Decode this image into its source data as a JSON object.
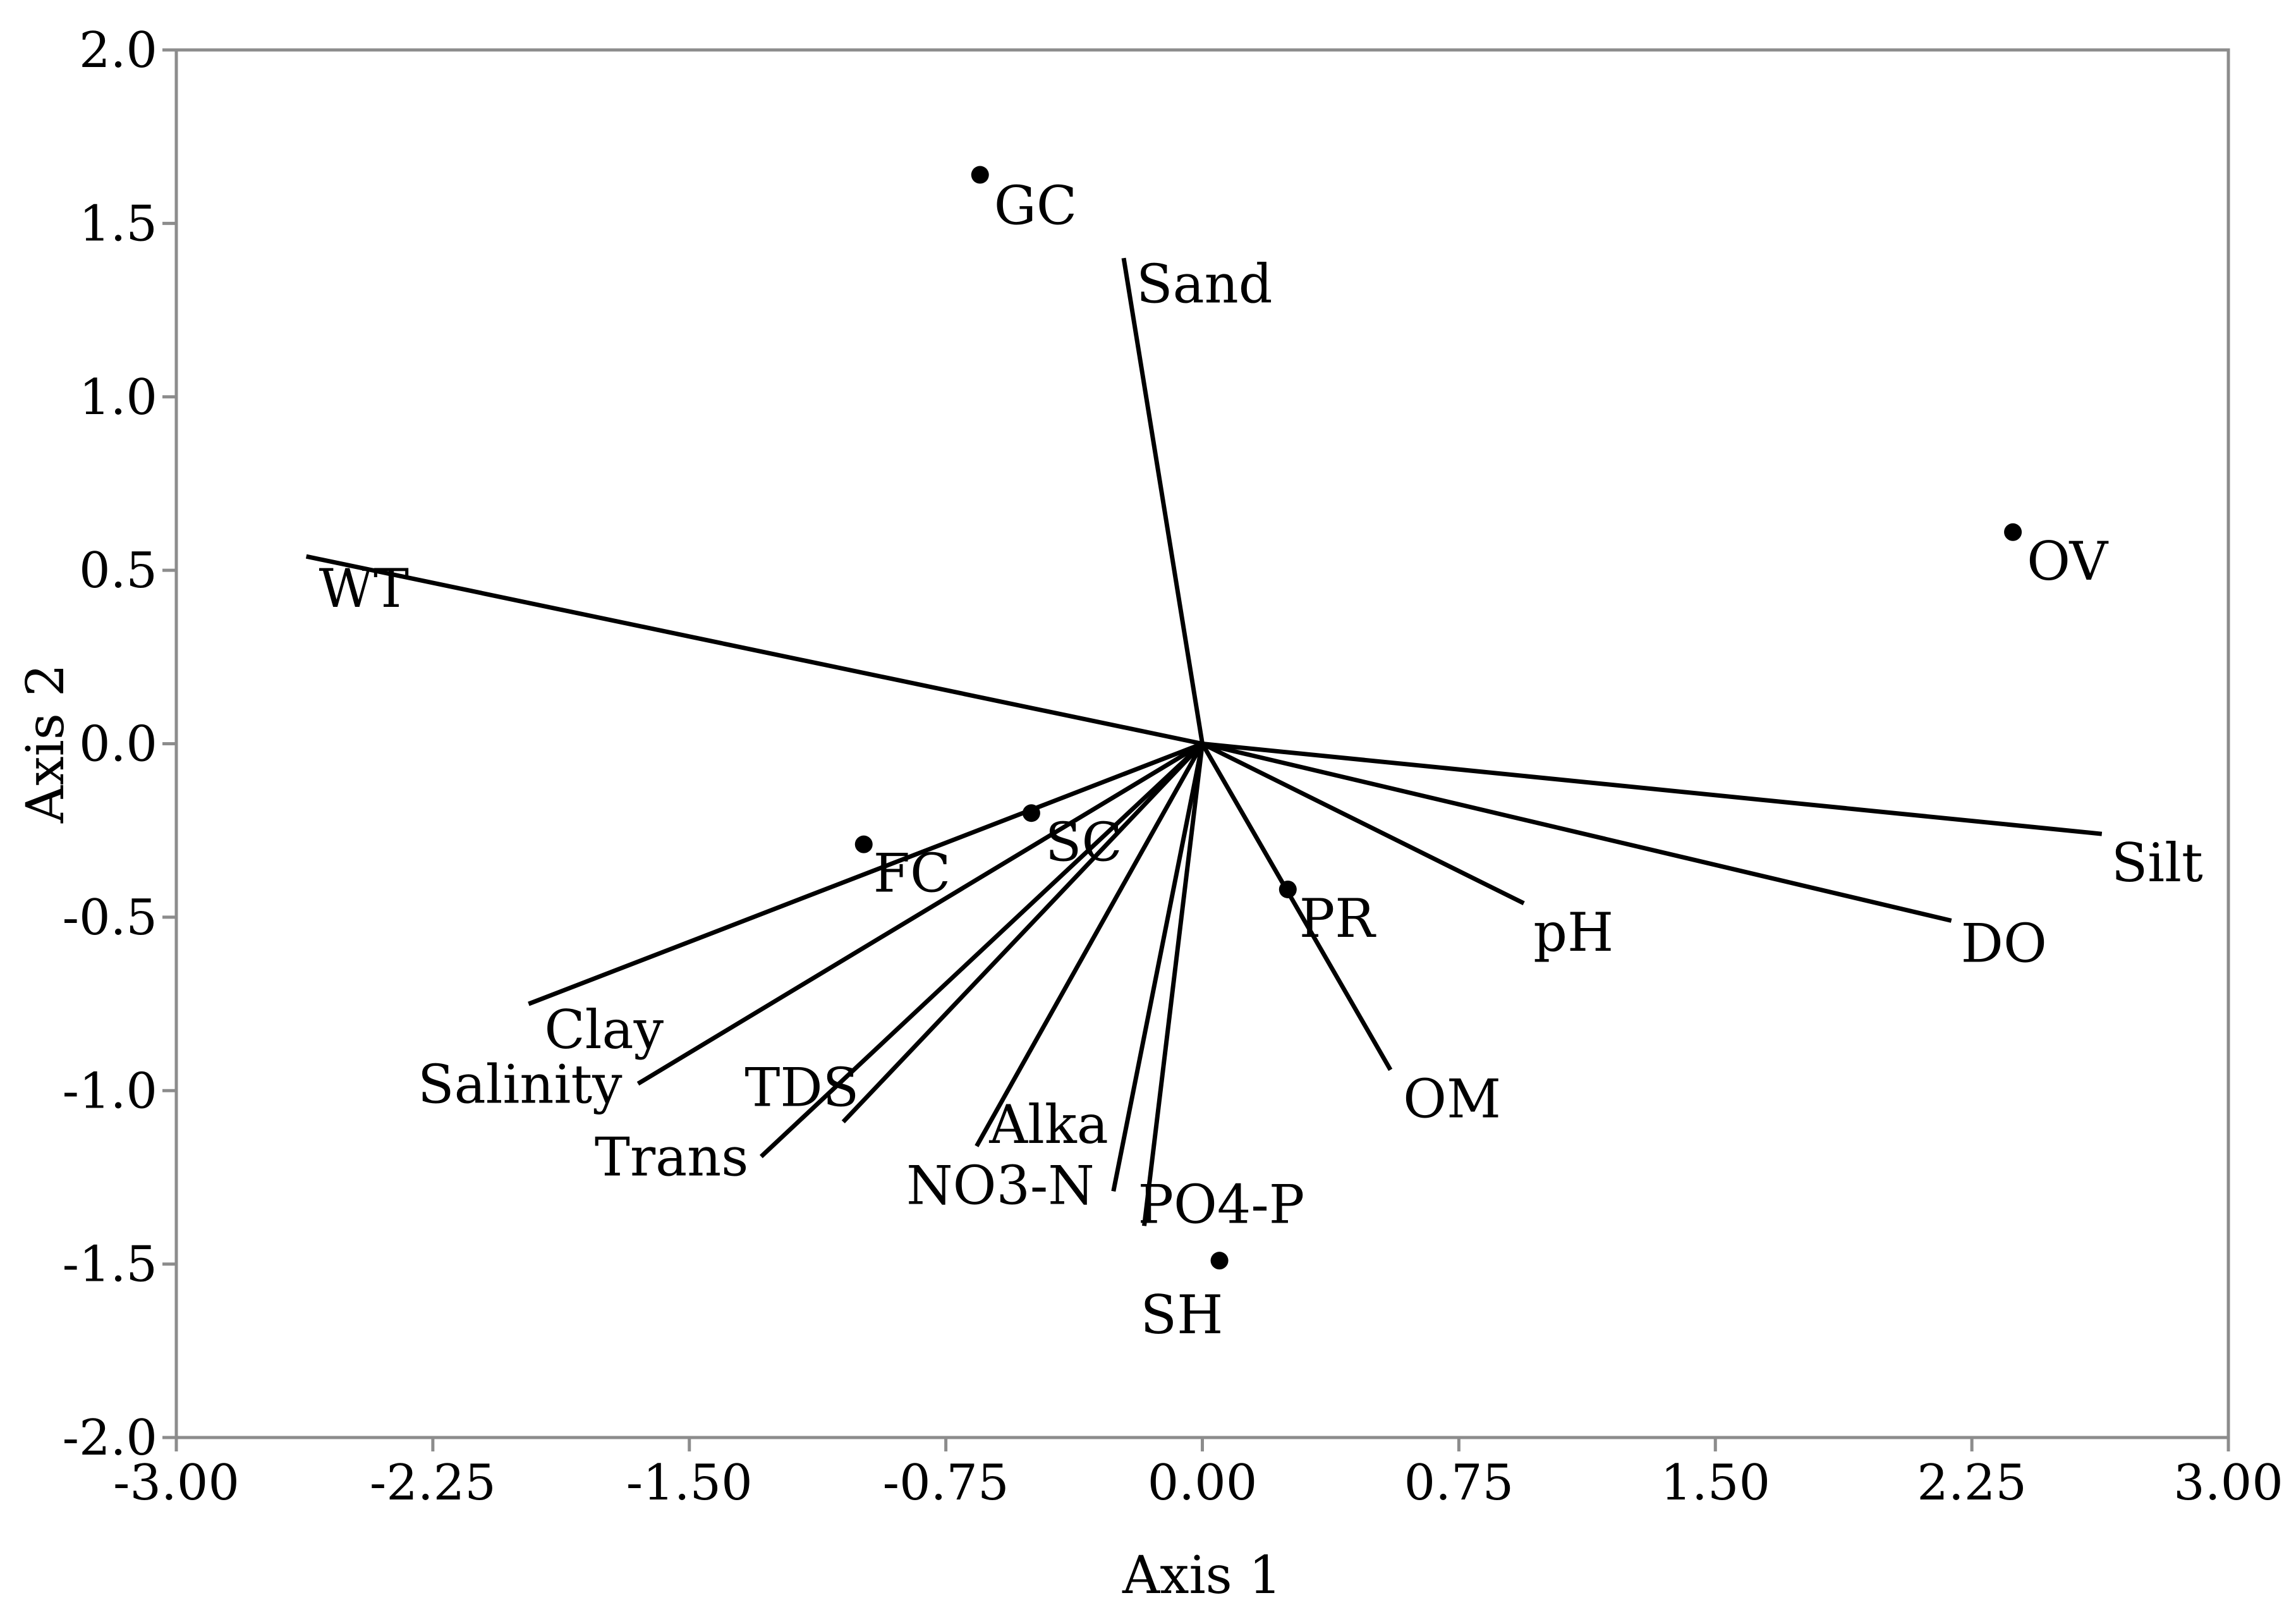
{
  "chart_data": {
    "type": "scatter",
    "xlabel": "Axis 1",
    "ylabel": "Axis 2",
    "xlim": [
      -3.0,
      3.0
    ],
    "ylim": [
      -2.0,
      2.0
    ],
    "xticks": [
      -3.0,
      -2.25,
      -1.5,
      -0.75,
      0.0,
      0.75,
      1.5,
      2.25,
      3.0
    ],
    "xtick_labels": [
      "-3.00",
      "-2.25",
      "-1.50",
      "-0.75",
      "0.00",
      "0.75",
      "1.50",
      "2.25",
      "3.00"
    ],
    "yticks": [
      2.0,
      1.5,
      1.0,
      0.5,
      0.0,
      -0.5,
      -1.0,
      -1.5,
      -2.0
    ],
    "ytick_labels": [
      "2.0",
      "1.5",
      "1.0",
      "0.5",
      "0.0",
      "-0.5",
      "-1.0",
      "-1.5",
      "-2.0"
    ],
    "grid": false,
    "sites": [
      {
        "label": "GC",
        "x": -0.65,
        "y": 1.64
      },
      {
        "label": "OV",
        "x": 2.37,
        "y": 0.61
      },
      {
        "label": "FC",
        "x": -0.99,
        "y": -0.29
      },
      {
        "label": "SC",
        "x": -0.5,
        "y": -0.2
      },
      {
        "label": "PR",
        "x": 0.25,
        "y": -0.42
      },
      {
        "label": "SH",
        "x": 0.05,
        "y": -1.49
      }
    ],
    "vectors": [
      {
        "label": "Sand",
        "x": -0.23,
        "y": 1.4
      },
      {
        "label": "WT",
        "x": -2.62,
        "y": 0.54
      },
      {
        "label": "Silt",
        "x": 2.63,
        "y": -0.26
      },
      {
        "label": "DO",
        "x": 2.19,
        "y": -0.51
      },
      {
        "label": "pH",
        "x": 0.94,
        "y": -0.46
      },
      {
        "label": "OM",
        "x": 0.55,
        "y": -0.94
      },
      {
        "label": "PO4-P",
        "x": -0.17,
        "y": -1.39
      },
      {
        "label": "NO3-N",
        "x": -0.26,
        "y": -1.29
      },
      {
        "label": "Alka",
        "x": -0.66,
        "y": -1.16
      },
      {
        "label": "TDS",
        "x": -1.05,
        "y": -1.09
      },
      {
        "label": "Trans",
        "x": -1.29,
        "y": -1.19
      },
      {
        "label": "Salinity",
        "x": -1.65,
        "y": -0.98
      },
      {
        "label": "Clay",
        "x": -1.97,
        "y": -0.75
      }
    ]
  }
}
